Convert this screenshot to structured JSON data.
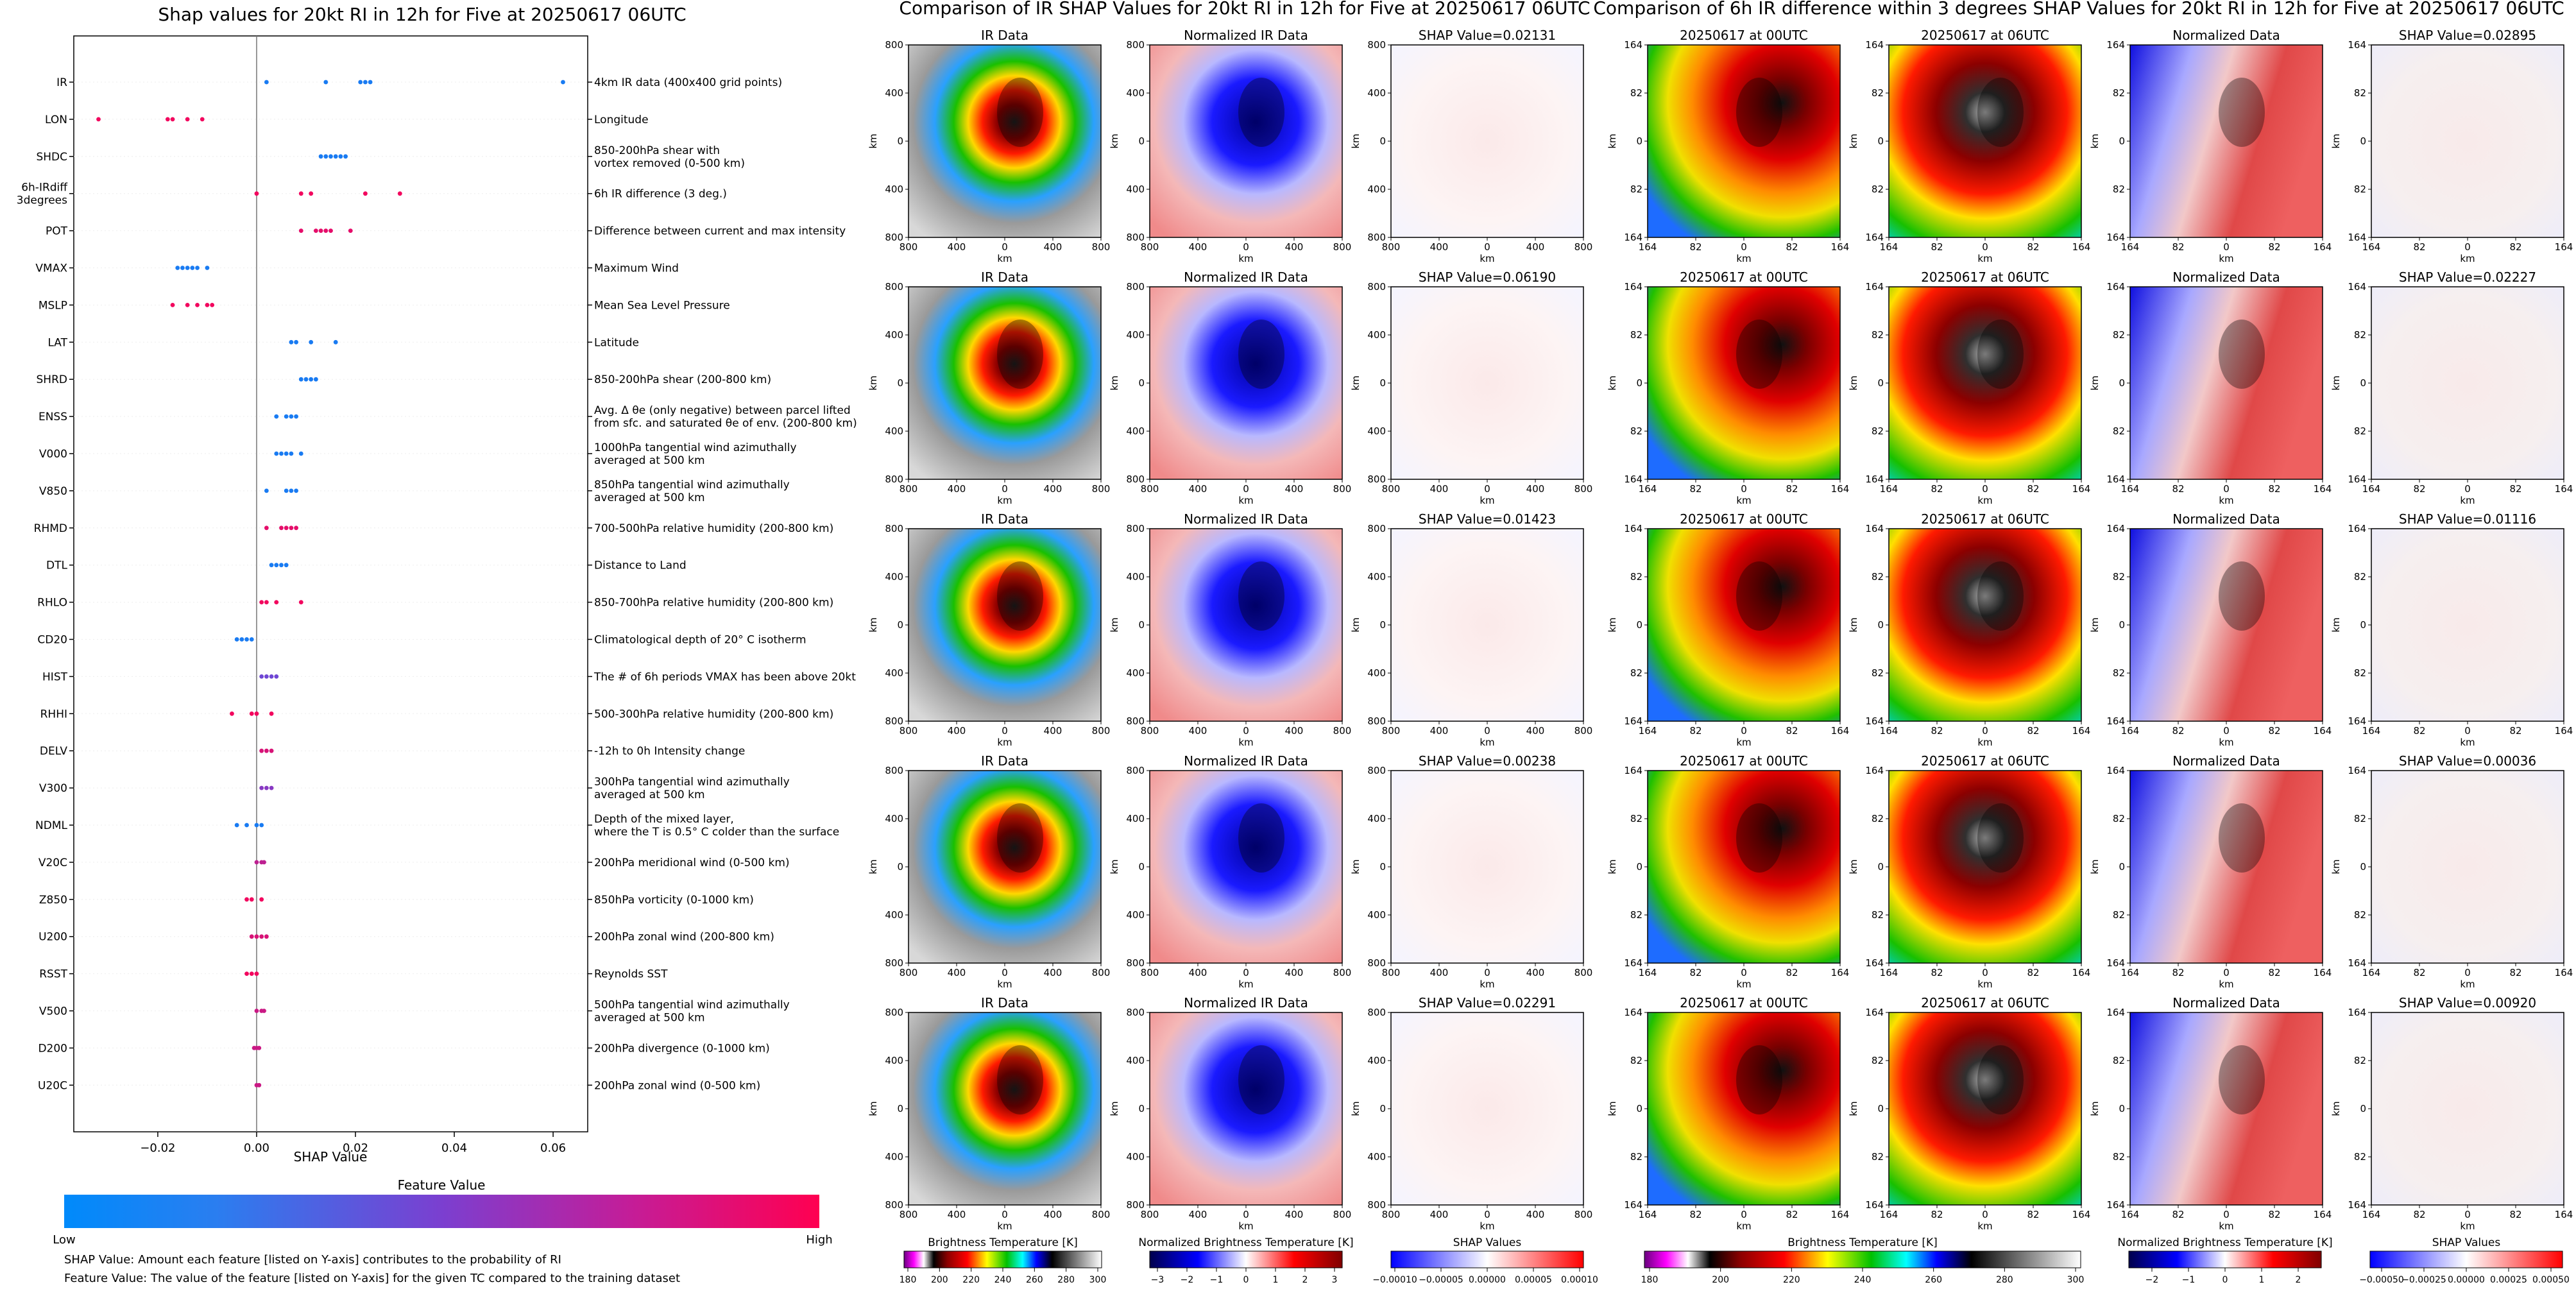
{
  "chart_data": [
    {
      "type": "scatter",
      "title": "Shap values for 20kt RI in 12h for Five at 20250617 06UTC",
      "xlabel": "SHAP Value",
      "xlim": [
        -0.037,
        0.067
      ],
      "x_ticks": [
        "−0.02",
        "0.00",
        "0.02",
        "0.04",
        "0.06"
      ],
      "x_tick_values": [
        -0.02,
        0.0,
        0.02,
        0.04,
        0.06
      ],
      "colorbar": {
        "label": "Feature Value",
        "low": "Low",
        "high": "High",
        "colors": [
          "#008afb",
          "#7b3fd0",
          "#ff0051"
        ]
      },
      "notes": [
        "SHAP Value: Amount each feature [listed on Y-axis] contributes to the probability of RI",
        "Feature Value: The value of the feature [listed on Y-axis] for the given TC compared to the training dataset"
      ],
      "features": [
        {
          "code": "IR",
          "desc": "4km IR data (400x400 grid points)",
          "points": [
            [
              0.002,
              0.1
            ],
            [
              0.014,
              0.1
            ],
            [
              0.021,
              0.1
            ],
            [
              0.022,
              0.1
            ],
            [
              0.023,
              0.1
            ],
            [
              0.062,
              0.1
            ]
          ]
        },
        {
          "code": "LON",
          "desc": "Longitude",
          "points": [
            [
              -0.032,
              0.95
            ],
            [
              -0.018,
              0.95
            ],
            [
              -0.017,
              0.95
            ],
            [
              -0.014,
              0.95
            ],
            [
              -0.011,
              0.95
            ]
          ]
        },
        {
          "code": "SHDC",
          "desc": "850-200hPa shear with|vortex removed (0-500 km)",
          "points": [
            [
              0.013,
              0.1
            ],
            [
              0.014,
              0.1
            ],
            [
              0.015,
              0.1
            ],
            [
              0.016,
              0.1
            ],
            [
              0.017,
              0.1
            ],
            [
              0.018,
              0.1
            ]
          ]
        },
        {
          "code": "6h-IRdiff|3degrees",
          "desc": "6h IR difference (3 deg.)",
          "points": [
            [
              0.0,
              0.95
            ],
            [
              0.009,
              0.95
            ],
            [
              0.011,
              0.95
            ],
            [
              0.022,
              0.95
            ],
            [
              0.029,
              0.95
            ]
          ]
        },
        {
          "code": "POT",
          "desc": "Difference between current and max intensity",
          "points": [
            [
              0.009,
              0.9
            ],
            [
              0.012,
              0.9
            ],
            [
              0.013,
              0.9
            ],
            [
              0.014,
              0.9
            ],
            [
              0.015,
              0.9
            ],
            [
              0.019,
              0.9
            ]
          ]
        },
        {
          "code": "VMAX",
          "desc": "Maximum Wind",
          "points": [
            [
              -0.016,
              0.1
            ],
            [
              -0.015,
              0.1
            ],
            [
              -0.014,
              0.1
            ],
            [
              -0.013,
              0.1
            ],
            [
              -0.012,
              0.1
            ],
            [
              -0.01,
              0.1
            ]
          ]
        },
        {
          "code": "MSLP",
          "desc": "Mean Sea Level Pressure",
          "points": [
            [
              -0.017,
              0.95
            ],
            [
              -0.014,
              0.95
            ],
            [
              -0.012,
              0.95
            ],
            [
              -0.01,
              0.95
            ],
            [
              -0.009,
              0.95
            ]
          ]
        },
        {
          "code": "LAT",
          "desc": "Latitude",
          "points": [
            [
              0.007,
              0.1
            ],
            [
              0.008,
              0.1
            ],
            [
              0.011,
              0.1
            ],
            [
              0.016,
              0.1
            ]
          ]
        },
        {
          "code": "SHRD",
          "desc": "850-200hPa shear (200-800 km)",
          "points": [
            [
              0.009,
              0.1
            ],
            [
              0.01,
              0.1
            ],
            [
              0.011,
              0.1
            ],
            [
              0.012,
              0.1
            ]
          ]
        },
        {
          "code": "ENSS",
          "desc": "Avg. Δ θe (only negative) between parcel lifted|from sfc. and saturated θe of env. (200-800 km)",
          "points": [
            [
              0.004,
              0.1
            ],
            [
              0.006,
              0.1
            ],
            [
              0.007,
              0.1
            ],
            [
              0.008,
              0.1
            ]
          ]
        },
        {
          "code": "V000",
          "desc": "1000hPa tangential wind azimuthally|averaged at 500 km",
          "points": [
            [
              0.004,
              0.1
            ],
            [
              0.005,
              0.1
            ],
            [
              0.006,
              0.1
            ],
            [
              0.007,
              0.1
            ],
            [
              0.009,
              0.1
            ]
          ]
        },
        {
          "code": "V850",
          "desc": "850hPa tangential wind azimuthally|averaged at 500 km",
          "points": [
            [
              0.002,
              0.1
            ],
            [
              0.006,
              0.1
            ],
            [
              0.007,
              0.1
            ],
            [
              0.008,
              0.1
            ]
          ]
        },
        {
          "code": "RHMD",
          "desc": "700-500hPa relative humidity (200-800 km)",
          "points": [
            [
              0.002,
              0.9
            ],
            [
              0.005,
              0.9
            ],
            [
              0.006,
              0.9
            ],
            [
              0.007,
              0.9
            ],
            [
              0.008,
              0.9
            ]
          ]
        },
        {
          "code": "DTL",
          "desc": "Distance to Land",
          "points": [
            [
              0.003,
              0.1
            ],
            [
              0.004,
              0.1
            ],
            [
              0.005,
              0.1
            ],
            [
              0.006,
              0.1
            ]
          ]
        },
        {
          "code": "RHLO",
          "desc": "850-700hPa relative humidity (200-800 km)",
          "points": [
            [
              0.001,
              0.95
            ],
            [
              0.002,
              0.95
            ],
            [
              0.004,
              0.95
            ],
            [
              0.009,
              0.95
            ]
          ]
        },
        {
          "code": "CD20",
          "desc": "Climatological depth of 20° C isotherm",
          "points": [
            [
              -0.004,
              0.1
            ],
            [
              -0.003,
              0.1
            ],
            [
              -0.002,
              0.1
            ],
            [
              -0.001,
              0.1
            ]
          ]
        },
        {
          "code": "HIST",
          "desc": "The # of 6h periods VMAX has been above 20kt",
          "points": [
            [
              0.001,
              0.45
            ],
            [
              0.002,
              0.45
            ],
            [
              0.003,
              0.45
            ],
            [
              0.004,
              0.45
            ]
          ]
        },
        {
          "code": "RHHI",
          "desc": "500-300hPa relative humidity (200-800 km)",
          "points": [
            [
              -0.005,
              0.95
            ],
            [
              -0.001,
              0.95
            ],
            [
              0.0,
              0.95
            ],
            [
              0.003,
              0.95
            ]
          ]
        },
        {
          "code": "DELV",
          "desc": "-12h to 0h Intensity change",
          "points": [
            [
              0.001,
              0.85
            ],
            [
              0.002,
              0.85
            ],
            [
              0.003,
              0.85
            ]
          ]
        },
        {
          "code": "V300",
          "desc": "300hPa tangential wind azimuthally|averaged at 500 km",
          "points": [
            [
              0.001,
              0.55
            ],
            [
              0.002,
              0.55
            ],
            [
              0.003,
              0.55
            ]
          ]
        },
        {
          "code": "NDML",
          "desc": "Depth of the mixed layer,|where the T is 0.5° C colder than the surface",
          "points": [
            [
              -0.004,
              0.1
            ],
            [
              -0.002,
              0.1
            ],
            [
              0.0,
              0.1
            ],
            [
              0.001,
              0.1
            ]
          ]
        },
        {
          "code": "V20C",
          "desc": "200hPa meridional wind (0-500 km)",
          "points": [
            [
              0.0,
              0.75
            ],
            [
              0.001,
              0.75
            ],
            [
              0.0015,
              0.75
            ]
          ]
        },
        {
          "code": "Z850",
          "desc": "850hPa vorticity (0-1000 km)",
          "points": [
            [
              -0.002,
              0.95
            ],
            [
              -0.001,
              0.95
            ],
            [
              0.001,
              0.95
            ]
          ]
        },
        {
          "code": "U200",
          "desc": "200hPa zonal wind (200-800 km)",
          "points": [
            [
              -0.001,
              0.85
            ],
            [
              0.0,
              0.85
            ],
            [
              0.001,
              0.85
            ],
            [
              0.002,
              0.85
            ]
          ]
        },
        {
          "code": "RSST",
          "desc": "Reynolds SST",
          "points": [
            [
              -0.002,
              0.95
            ],
            [
              -0.001,
              0.95
            ],
            [
              0.0,
              0.95
            ]
          ]
        },
        {
          "code": "V500",
          "desc": "500hPa tangential wind azimuthally|averaged at 500 km",
          "points": [
            [
              0.0,
              0.8
            ],
            [
              0.001,
              0.8
            ],
            [
              0.0015,
              0.8
            ]
          ]
        },
        {
          "code": "D200",
          "desc": "200hPa divergence (0-1000 km)",
          "points": [
            [
              -0.0005,
              0.8
            ],
            [
              0.0,
              0.8
            ],
            [
              0.0005,
              0.8
            ]
          ]
        },
        {
          "code": "U20C",
          "desc": "200hPa zonal wind (0-500 km)",
          "points": [
            [
              0.0,
              0.8
            ],
            [
              0.0005,
              0.8
            ]
          ]
        }
      ]
    },
    {
      "type": "heatmap",
      "title": "Comparison of IR SHAP Values for 20kt RI in 12h for Five at 20250617 06UTC",
      "col_titles": [
        "IR Data",
        "Normalized IR Data"
      ],
      "shap_titles": [
        "SHAP Value=0.02131",
        "SHAP Value=0.06190",
        "SHAP Value=0.01423",
        "SHAP Value=0.00238",
        "SHAP Value=0.02291"
      ],
      "axis_label": "km",
      "x_ticks": [
        "800",
        "400",
        "0",
        "400",
        "800"
      ],
      "y_ticks": [
        "800",
        "400",
        "0",
        "400",
        "800"
      ],
      "colorbars": [
        {
          "label": "Brightness Temperature [K]",
          "ticks": [
            "180",
            "200",
            "220",
            "240",
            "260",
            "280",
            "300"
          ]
        },
        {
          "label": "Normalized Brightness Temperature [K]",
          "ticks": [
            "−3",
            "−2",
            "−1",
            "0",
            "1",
            "2",
            "3"
          ]
        },
        {
          "label": "SHAP Values",
          "ticks": [
            "−0.00010",
            "−0.00005",
            "0.00000",
            "0.00005",
            "0.00010"
          ]
        }
      ]
    },
    {
      "type": "heatmap",
      "title": "Comparison of 6h IR difference within 3 degrees SHAP Values for 20kt RI in 12h for Five at 20250617 06UTC",
      "col_titles": [
        "20250617 at 00UTC",
        "20250617 at 06UTC",
        "Normalized Data"
      ],
      "shap_titles": [
        "SHAP Value=0.02895",
        "SHAP Value=0.02227",
        "SHAP Value=0.01116",
        "SHAP Value=0.00036",
        "SHAP Value=0.00920"
      ],
      "axis_label": "km",
      "x_ticks": [
        "164",
        "82",
        "0",
        "82",
        "164"
      ],
      "y_ticks": [
        "164",
        "82",
        "0",
        "82",
        "164"
      ],
      "colorbars": [
        {
          "label": "Brightness Temperature [K]",
          "ticks": [
            "180",
            "200",
            "220",
            "240",
            "260",
            "280",
            "300"
          ]
        },
        {
          "label": "Normalized Brightness Temperature [K]",
          "ticks": [
            "−2",
            "−1",
            "0",
            "1",
            "2"
          ]
        },
        {
          "label": "SHAP Values",
          "ticks": [
            "−0.00050",
            "−0.00025",
            "0.00000",
            "0.00025",
            "0.00050"
          ]
        }
      ]
    }
  ]
}
